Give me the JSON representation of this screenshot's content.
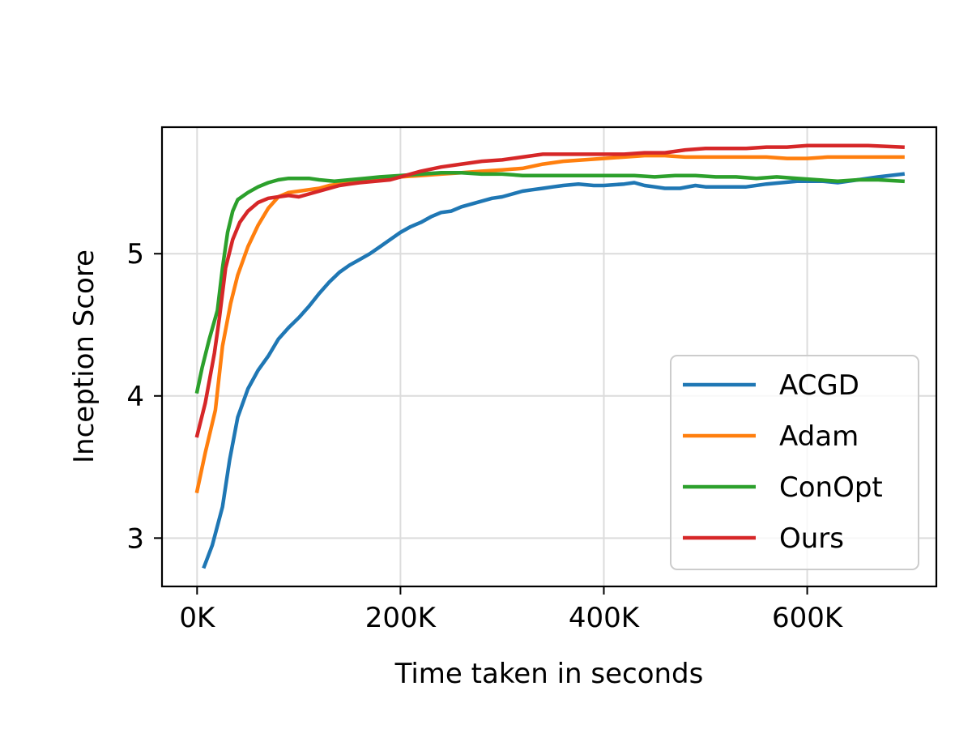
{
  "chart_data": {
    "type": "line",
    "title": "",
    "xlabel": "Time taken in seconds",
    "ylabel": "Inception Score",
    "xlim": [
      -34500,
      727000
    ],
    "ylim": [
      2.66,
      5.89
    ],
    "xticks": [
      0,
      200000,
      400000,
      600000
    ],
    "xtick_labels": [
      "0K",
      "200K",
      "400K",
      "600K"
    ],
    "yticks": [
      3,
      4,
      5
    ],
    "ytick_labels": [
      "3",
      "4",
      "5"
    ],
    "grid": true,
    "legend_position": "lower-right",
    "series": [
      {
        "name": "ACGD",
        "color": "#1f77b4",
        "points": [
          [
            7000,
            2.8
          ],
          [
            15000,
            2.95
          ],
          [
            25000,
            3.22
          ],
          [
            32000,
            3.55
          ],
          [
            40000,
            3.85
          ],
          [
            50000,
            4.05
          ],
          [
            60000,
            4.18
          ],
          [
            70000,
            4.28
          ],
          [
            80000,
            4.4
          ],
          [
            90000,
            4.48
          ],
          [
            100000,
            4.55
          ],
          [
            110000,
            4.63
          ],
          [
            120000,
            4.72
          ],
          [
            130000,
            4.8
          ],
          [
            140000,
            4.87
          ],
          [
            150000,
            4.92
          ],
          [
            160000,
            4.96
          ],
          [
            170000,
            5.0
          ],
          [
            180000,
            5.05
          ],
          [
            190000,
            5.1
          ],
          [
            200000,
            5.15
          ],
          [
            210000,
            5.19
          ],
          [
            220000,
            5.22
          ],
          [
            230000,
            5.26
          ],
          [
            240000,
            5.29
          ],
          [
            250000,
            5.3
          ],
          [
            260000,
            5.33
          ],
          [
            270000,
            5.35
          ],
          [
            280000,
            5.37
          ],
          [
            290000,
            5.39
          ],
          [
            300000,
            5.4
          ],
          [
            310000,
            5.42
          ],
          [
            320000,
            5.44
          ],
          [
            330000,
            5.45
          ],
          [
            340000,
            5.46
          ],
          [
            350000,
            5.47
          ],
          [
            360000,
            5.48
          ],
          [
            375000,
            5.49
          ],
          [
            390000,
            5.48
          ],
          [
            400000,
            5.48
          ],
          [
            420000,
            5.49
          ],
          [
            430000,
            5.5
          ],
          [
            440000,
            5.48
          ],
          [
            450000,
            5.47
          ],
          [
            460000,
            5.46
          ],
          [
            475000,
            5.46
          ],
          [
            490000,
            5.48
          ],
          [
            500000,
            5.47
          ],
          [
            520000,
            5.47
          ],
          [
            540000,
            5.47
          ],
          [
            560000,
            5.49
          ],
          [
            575000,
            5.5
          ],
          [
            590000,
            5.51
          ],
          [
            600000,
            5.51
          ],
          [
            615000,
            5.51
          ],
          [
            630000,
            5.5
          ],
          [
            650000,
            5.52
          ],
          [
            670000,
            5.54
          ],
          [
            694000,
            5.56
          ]
        ]
      },
      {
        "name": "Adam",
        "color": "#ff7f0e",
        "points": [
          [
            0,
            3.33
          ],
          [
            8000,
            3.6
          ],
          [
            18000,
            3.9
          ],
          [
            25000,
            4.35
          ],
          [
            33000,
            4.65
          ],
          [
            40000,
            4.85
          ],
          [
            50000,
            5.05
          ],
          [
            60000,
            5.2
          ],
          [
            70000,
            5.32
          ],
          [
            80000,
            5.4
          ],
          [
            90000,
            5.43
          ],
          [
            100000,
            5.44
          ],
          [
            110000,
            5.45
          ],
          [
            120000,
            5.46
          ],
          [
            130000,
            5.48
          ],
          [
            140000,
            5.49
          ],
          [
            150000,
            5.5
          ],
          [
            160000,
            5.51
          ],
          [
            175000,
            5.52
          ],
          [
            190000,
            5.53
          ],
          [
            200000,
            5.54
          ],
          [
            220000,
            5.55
          ],
          [
            240000,
            5.56
          ],
          [
            260000,
            5.57
          ],
          [
            280000,
            5.58
          ],
          [
            300000,
            5.59
          ],
          [
            320000,
            5.6
          ],
          [
            340000,
            5.63
          ],
          [
            360000,
            5.65
          ],
          [
            380000,
            5.66
          ],
          [
            400000,
            5.67
          ],
          [
            420000,
            5.68
          ],
          [
            440000,
            5.69
          ],
          [
            460000,
            5.69
          ],
          [
            480000,
            5.68
          ],
          [
            500000,
            5.68
          ],
          [
            520000,
            5.68
          ],
          [
            540000,
            5.68
          ],
          [
            560000,
            5.68
          ],
          [
            580000,
            5.67
          ],
          [
            600000,
            5.67
          ],
          [
            620000,
            5.68
          ],
          [
            640000,
            5.68
          ],
          [
            660000,
            5.68
          ],
          [
            694000,
            5.68
          ]
        ]
      },
      {
        "name": "ConOpt",
        "color": "#2ca02c",
        "points": [
          [
            0,
            4.03
          ],
          [
            5000,
            4.2
          ],
          [
            12000,
            4.4
          ],
          [
            20000,
            4.6
          ],
          [
            25000,
            4.9
          ],
          [
            30000,
            5.15
          ],
          [
            35000,
            5.3
          ],
          [
            40000,
            5.38
          ],
          [
            50000,
            5.43
          ],
          [
            60000,
            5.47
          ],
          [
            70000,
            5.5
          ],
          [
            80000,
            5.52
          ],
          [
            90000,
            5.53
          ],
          [
            100000,
            5.53
          ],
          [
            110000,
            5.53
          ],
          [
            120000,
            5.52
          ],
          [
            135000,
            5.51
          ],
          [
            150000,
            5.52
          ],
          [
            165000,
            5.53
          ],
          [
            180000,
            5.54
          ],
          [
            200000,
            5.55
          ],
          [
            220000,
            5.56
          ],
          [
            240000,
            5.57
          ],
          [
            260000,
            5.57
          ],
          [
            280000,
            5.56
          ],
          [
            300000,
            5.56
          ],
          [
            320000,
            5.55
          ],
          [
            340000,
            5.55
          ],
          [
            360000,
            5.55
          ],
          [
            380000,
            5.55
          ],
          [
            400000,
            5.55
          ],
          [
            430000,
            5.55
          ],
          [
            450000,
            5.54
          ],
          [
            470000,
            5.55
          ],
          [
            490000,
            5.55
          ],
          [
            510000,
            5.54
          ],
          [
            530000,
            5.54
          ],
          [
            550000,
            5.53
          ],
          [
            570000,
            5.54
          ],
          [
            590000,
            5.53
          ],
          [
            610000,
            5.52
          ],
          [
            630000,
            5.51
          ],
          [
            650000,
            5.52
          ],
          [
            670000,
            5.52
          ],
          [
            694000,
            5.51
          ]
        ]
      },
      {
        "name": "Ours",
        "color": "#d62728",
        "points": [
          [
            0,
            3.72
          ],
          [
            8000,
            3.95
          ],
          [
            17000,
            4.3
          ],
          [
            22000,
            4.55
          ],
          [
            28000,
            4.9
          ],
          [
            35000,
            5.1
          ],
          [
            42000,
            5.22
          ],
          [
            50000,
            5.3
          ],
          [
            60000,
            5.36
          ],
          [
            70000,
            5.39
          ],
          [
            80000,
            5.4
          ],
          [
            90000,
            5.41
          ],
          [
            100000,
            5.4
          ],
          [
            110000,
            5.42
          ],
          [
            120000,
            5.44
          ],
          [
            130000,
            5.46
          ],
          [
            140000,
            5.48
          ],
          [
            150000,
            5.49
          ],
          [
            160000,
            5.5
          ],
          [
            175000,
            5.51
          ],
          [
            190000,
            5.52
          ],
          [
            200000,
            5.54
          ],
          [
            210000,
            5.56
          ],
          [
            220000,
            5.58
          ],
          [
            240000,
            5.61
          ],
          [
            260000,
            5.63
          ],
          [
            280000,
            5.65
          ],
          [
            300000,
            5.66
          ],
          [
            320000,
            5.68
          ],
          [
            340000,
            5.7
          ],
          [
            360000,
            5.7
          ],
          [
            380000,
            5.7
          ],
          [
            400000,
            5.7
          ],
          [
            420000,
            5.7
          ],
          [
            440000,
            5.71
          ],
          [
            460000,
            5.71
          ],
          [
            480000,
            5.73
          ],
          [
            500000,
            5.74
          ],
          [
            520000,
            5.74
          ],
          [
            540000,
            5.74
          ],
          [
            560000,
            5.75
          ],
          [
            580000,
            5.75
          ],
          [
            600000,
            5.76
          ],
          [
            620000,
            5.76
          ],
          [
            640000,
            5.76
          ],
          [
            660000,
            5.76
          ],
          [
            694000,
            5.75
          ]
        ]
      }
    ]
  }
}
